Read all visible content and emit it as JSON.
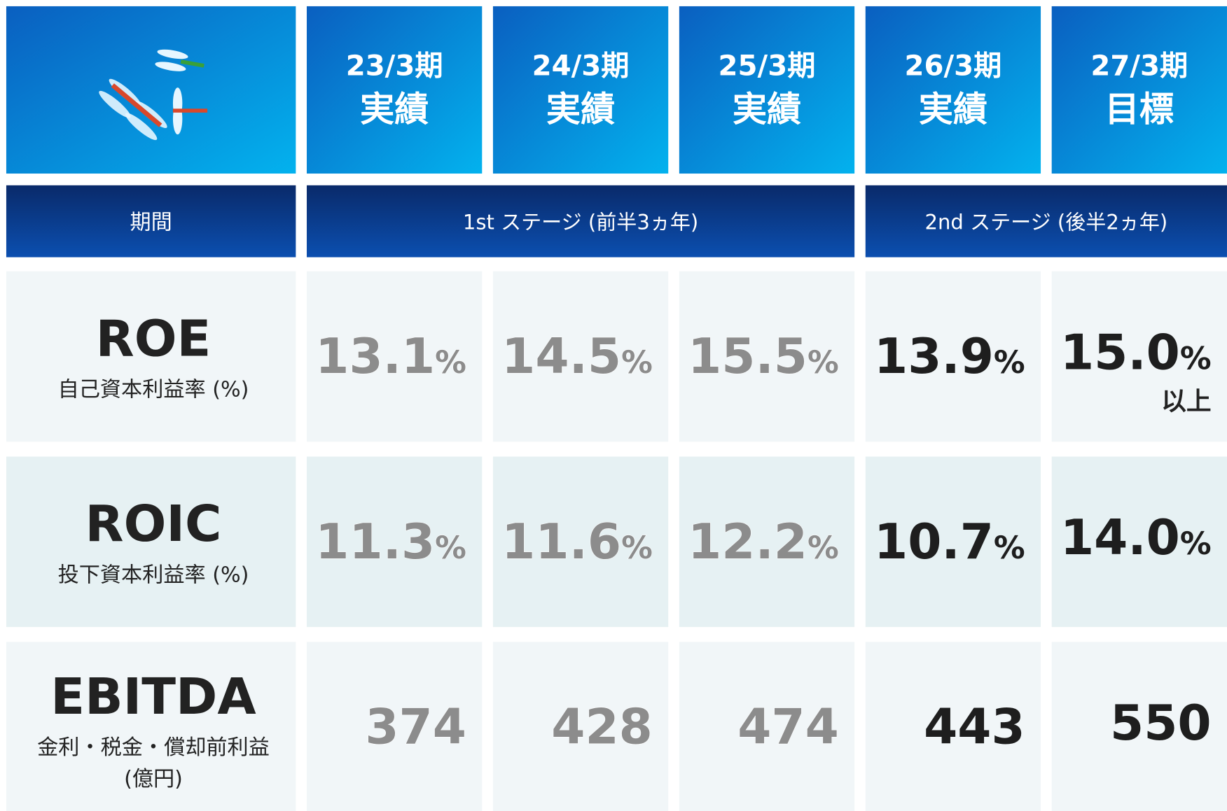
{
  "header": {
    "periods": [
      {
        "period": "23/3期",
        "kind": "実績"
      },
      {
        "period": "24/3期",
        "kind": "実績"
      },
      {
        "period": "25/3期",
        "kind": "実績"
      },
      {
        "period": "26/3期",
        "kind": "実績"
      },
      {
        "period": "27/3期",
        "kind": "目標"
      }
    ]
  },
  "stages": {
    "label": "期間",
    "items": [
      "1st ステージ (前半3ヵ年)",
      "2nd ステージ (後半2ヵ年)"
    ]
  },
  "rows": [
    {
      "name": "ROE",
      "desc": [
        "自己資本利益率 (%)"
      ],
      "cells": [
        {
          "value": "13.1",
          "unit": "%"
        },
        {
          "value": "14.5",
          "unit": "%"
        },
        {
          "value": "15.5",
          "unit": "%"
        },
        {
          "value": "13.9",
          "unit": "%"
        },
        {
          "value": "15.0",
          "unit": "%",
          "note": "以上"
        }
      ]
    },
    {
      "name": "ROIC",
      "desc": [
        "投下資本利益率 (%)"
      ],
      "cells": [
        {
          "value": "11.3",
          "unit": "%"
        },
        {
          "value": "11.6",
          "unit": "%"
        },
        {
          "value": "12.2",
          "unit": "%"
        },
        {
          "value": "10.7",
          "unit": "%"
        },
        {
          "value": "14.0",
          "unit": "%"
        }
      ]
    },
    {
      "name": "EBITDA",
      "desc": [
        "金利・税金・償却前利益",
        "(億円)"
      ],
      "cells": [
        {
          "value": "374"
        },
        {
          "value": "428"
        },
        {
          "value": "474"
        },
        {
          "value": "443"
        },
        {
          "value": "550"
        }
      ]
    }
  ]
}
